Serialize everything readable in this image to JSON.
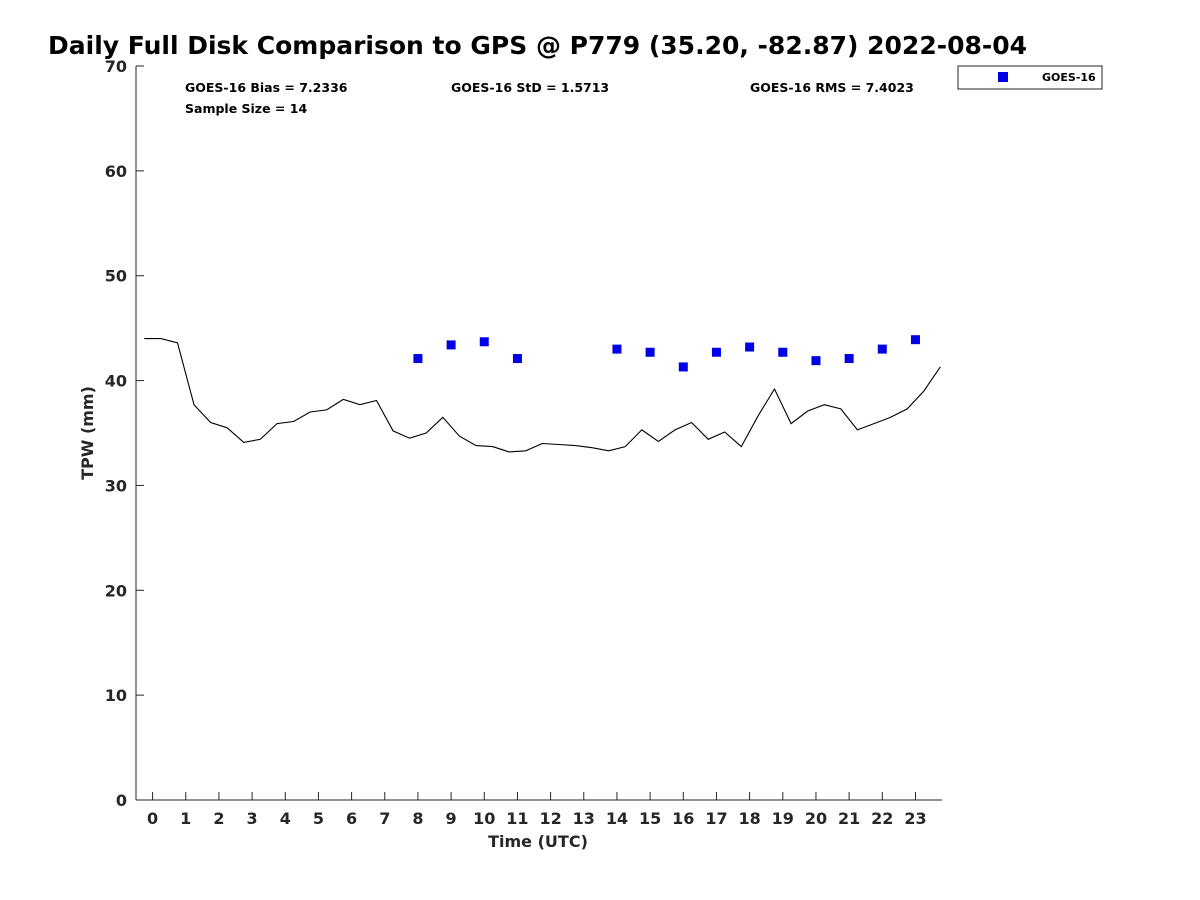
{
  "chart_data": {
    "type": "scatter",
    "title": "Daily Full Disk Comparison to GPS @ P779 (35.20, -82.87) 2022-08-04",
    "xlabel": "Time (UTC)",
    "ylabel": "TPW (mm)",
    "xlim": [
      -0.5,
      23.8
    ],
    "ylim": [
      0,
      70
    ],
    "x_ticks": [
      0,
      1,
      2,
      3,
      4,
      5,
      6,
      7,
      8,
      9,
      10,
      11,
      12,
      13,
      14,
      15,
      16,
      17,
      18,
      19,
      20,
      21,
      22,
      23
    ],
    "y_ticks": [
      0,
      10,
      20,
      30,
      40,
      50,
      60,
      70
    ],
    "grid": false,
    "legend_position": "top-right outside",
    "stats": {
      "bias": "GOES-16 Bias = 7.2336",
      "std": "GOES-16 StD = 1.5713",
      "rms": "GOES-16 RMS = 7.4023",
      "sample": "Sample Size = 14"
    },
    "series": [
      {
        "name": "GOES-16",
        "kind": "scatter",
        "marker": "square",
        "color": "#0000e6",
        "x": [
          8,
          9,
          10,
          11,
          14,
          15,
          16,
          17,
          18,
          19,
          20,
          21,
          22,
          23
        ],
        "y": [
          42.1,
          43.4,
          43.7,
          42.1,
          43.0,
          42.7,
          41.3,
          42.7,
          43.2,
          42.7,
          41.9,
          42.1,
          43.0,
          43.9
        ]
      },
      {
        "kind": "line",
        "color": "#000000",
        "x": [
          -0.25,
          0.25,
          0.75,
          1.25,
          1.75,
          2.25,
          2.75,
          3.25,
          3.75,
          4.25,
          4.75,
          5.25,
          5.75,
          6.25,
          6.75,
          7.25,
          7.75,
          8.25,
          8.75,
          9.25,
          9.75,
          10.25,
          10.75,
          11.25,
          11.75,
          12.25,
          12.75,
          13.25,
          13.75,
          14.25,
          14.75,
          15.25,
          15.75,
          16.25,
          16.75,
          17.25,
          17.75,
          18.25,
          18.75,
          19.25,
          19.75,
          20.25,
          20.75,
          21.25,
          21.75,
          22.25,
          22.75,
          23.25,
          23.75
        ],
        "y": [
          44.0,
          44.0,
          43.6,
          37.7,
          36.0,
          35.5,
          34.1,
          34.4,
          35.9,
          36.1,
          37.0,
          37.2,
          38.2,
          37.7,
          38.1,
          35.2,
          34.5,
          35.0,
          36.5,
          34.7,
          33.8,
          33.7,
          33.2,
          33.3,
          34.0,
          33.9,
          33.8,
          33.6,
          33.3,
          33.7,
          35.3,
          34.2,
          35.3,
          36.0,
          34.4,
          35.1,
          33.7,
          36.6,
          39.2,
          35.9,
          37.1,
          37.7,
          37.3,
          35.3,
          35.9,
          36.5,
          37.3,
          39.0,
          41.3
        ]
      }
    ]
  }
}
